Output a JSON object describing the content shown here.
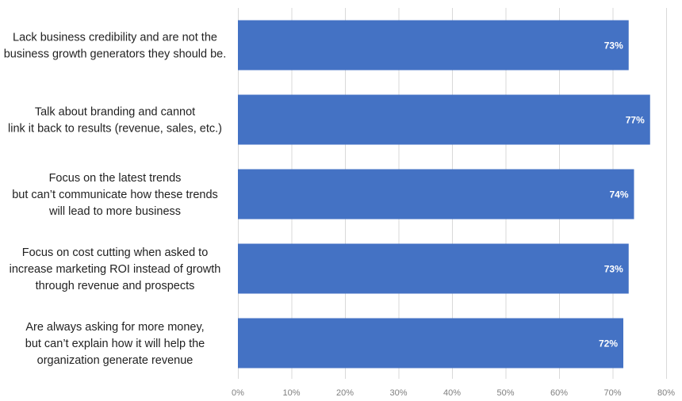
{
  "chart_data": {
    "type": "bar",
    "orientation": "horizontal",
    "categories": [
      [
        "Lack business credibility and are not the",
        "business growth generators they should be."
      ],
      [
        "Talk about branding and cannot",
        "link it back to results (revenue, sales, etc.)"
      ],
      [
        "Focus on the latest trends",
        "but can’t communicate how these trends",
        "will lead to more business"
      ],
      [
        "Focus on cost cutting when asked to",
        "increase marketing ROI instead of growth",
        "through revenue and prospects"
      ],
      [
        "Are always asking for more money,",
        "but can’t explain how it will help the",
        "organization generate revenue"
      ]
    ],
    "values": [
      73,
      77,
      74,
      73,
      72
    ],
    "data_labels": [
      "73%",
      "77%",
      "74%",
      "73%",
      "72%"
    ],
    "xlim": [
      0,
      80
    ],
    "ticks": [
      0,
      10,
      20,
      30,
      40,
      50,
      60,
      70,
      80
    ],
    "tick_labels": [
      "0%",
      "10%",
      "20%",
      "30%",
      "40%",
      "50%",
      "60%",
      "70%",
      "80%"
    ],
    "grid": true,
    "bar_color": "#4472c4",
    "title": "",
    "xlabel": "",
    "ylabel": ""
  }
}
